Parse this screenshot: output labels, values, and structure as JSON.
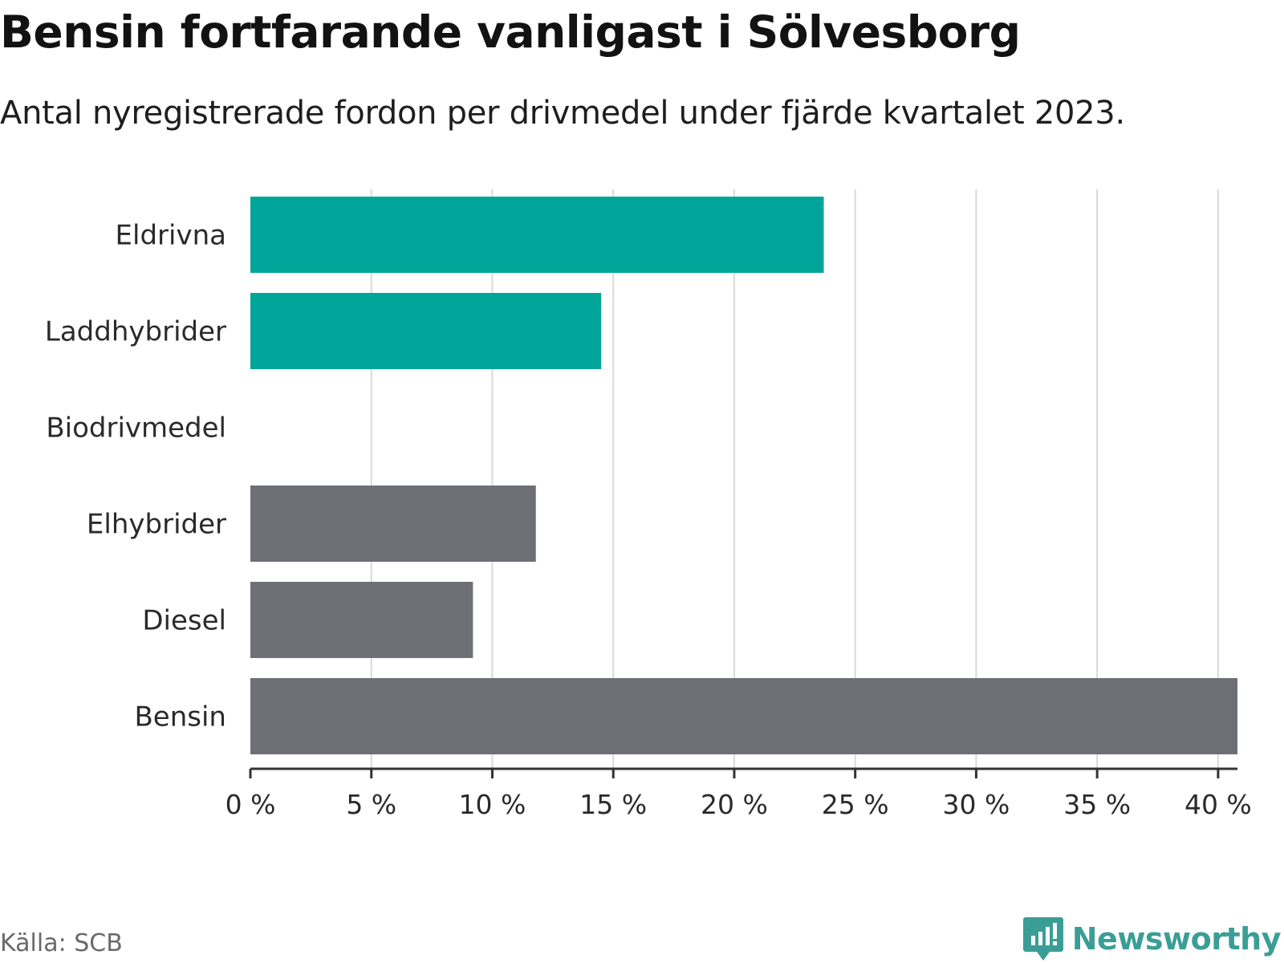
{
  "header": {
    "title": "Bensin fortfarande vanligast i Sölvesborg",
    "subtitle": "Antal nyregistrerade fordon per drivmedel under fjärde kvartalet 2023."
  },
  "footer": {
    "source": "Källa: SCB",
    "brand": "Newsworthy"
  },
  "colors": {
    "highlight": "#00a59a",
    "neutral": "#6e6e76",
    "grid": "#d9d9d9",
    "axis": "#333333",
    "brand": "#3a9e96"
  },
  "chart_data": {
    "type": "bar",
    "orientation": "horizontal",
    "title": "Bensin fortfarande vanligast i Sölvesborg",
    "subtitle": "Antal nyregistrerade fordon per drivmedel under fjärde kvartalet 2023.",
    "xlabel": "",
    "ylabel": "",
    "unit": "%",
    "categories": [
      "Eldrivna",
      "Laddhybrider",
      "Biodrivmedel",
      "Elhybrider",
      "Diesel",
      "Bensin"
    ],
    "values": [
      23.7,
      14.5,
      0,
      11.8,
      9.2,
      40.8
    ],
    "highlighted": [
      true,
      true,
      true,
      false,
      false,
      false
    ],
    "xlim": [
      0,
      40.8
    ],
    "xticks": [
      0,
      5,
      10,
      15,
      20,
      25,
      30,
      35,
      40
    ],
    "xtick_labels": [
      "0 %",
      "5 %",
      "10 %",
      "15 %",
      "20 %",
      "25 %",
      "30 %",
      "35 %",
      "40 %"
    ],
    "grid": "vertical",
    "legend": "none"
  }
}
